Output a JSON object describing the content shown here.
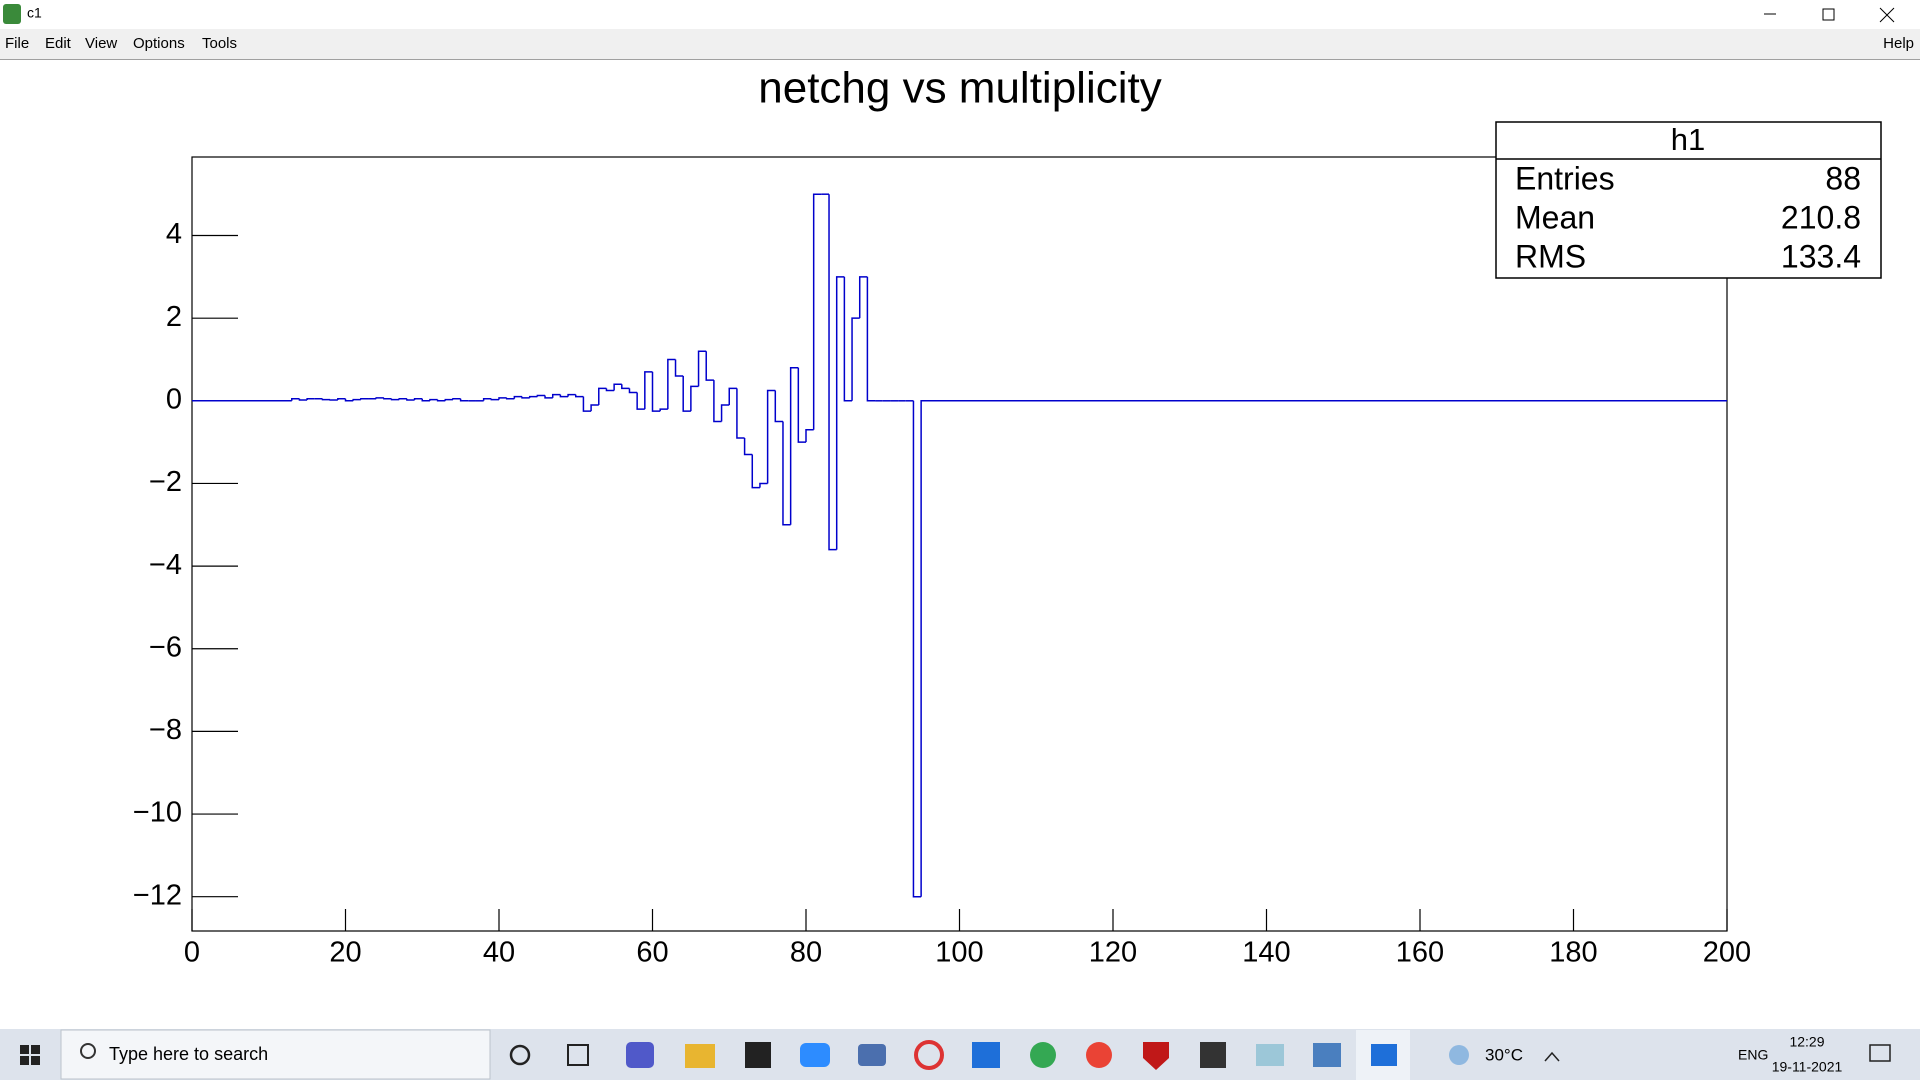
{
  "window": {
    "title": "c1",
    "menu": [
      "File",
      "Edit",
      "View",
      "Options",
      "Tools"
    ],
    "help": "Help"
  },
  "chart_data": {
    "type": "histogram",
    "title": "netchg vs multiplicity",
    "bins": [
      0,
      13,
      14,
      15,
      16,
      17,
      18,
      19,
      20,
      21,
      22,
      23,
      24,
      25,
      26,
      27,
      28,
      29,
      30,
      31,
      32,
      33,
      34,
      35,
      36,
      37,
      38,
      39,
      40,
      41,
      42,
      43,
      44,
      45,
      46,
      47,
      48,
      49,
      50,
      51,
      52,
      53,
      54,
      55,
      56,
      57,
      58,
      59,
      60,
      61,
      62,
      63,
      64,
      65,
      66,
      67,
      68,
      69,
      70,
      71,
      72,
      73,
      74,
      75,
      76,
      77,
      78,
      79,
      80,
      81,
      82,
      83,
      84,
      85,
      86,
      87,
      88,
      89,
      90,
      91,
      92,
      93,
      94,
      95,
      200
    ],
    "values": [
      0,
      0.05,
      0.02,
      0.05,
      0.05,
      0.03,
      0.02,
      0.05,
      0,
      0.03,
      0.05,
      0.05,
      0.07,
      0.05,
      0.03,
      0.05,
      0.02,
      0.05,
      0,
      0.03,
      0,
      0.03,
      0.05,
      0,
      0,
      0,
      0.05,
      0.03,
      0.07,
      0.05,
      0.1,
      0.07,
      0.1,
      0.13,
      0.07,
      0.15,
      0.1,
      0.15,
      0.1,
      -0.25,
      -0.1,
      0.3,
      0.25,
      0.4,
      0.3,
      0.2,
      -0.2,
      0.7,
      -0.25,
      -0.2,
      1.0,
      0.6,
      -0.25,
      0.35,
      1.2,
      0.5,
      -0.5,
      -0.1,
      0.3,
      -0.9,
      -1.3,
      -2.1,
      -2.0,
      0.25,
      -0.5,
      -3.0,
      0.8,
      -1.0,
      -0.7,
      5.0,
      5.0,
      -3.6,
      3.0,
      0,
      2.0,
      3.0,
      0,
      0,
      0,
      0,
      0,
      0,
      -12,
      0
    ],
    "color": "#0000cc",
    "xlim": [
      0,
      200
    ],
    "ylim": [
      -12.83,
      5.9
    ],
    "xticks": [
      0,
      20,
      40,
      60,
      80,
      100,
      120,
      140,
      160,
      180,
      200
    ],
    "yticks": [
      {
        "value": -12,
        "label": "−12"
      },
      {
        "value": -10,
        "label": "−10"
      },
      {
        "value": -8,
        "label": "−8"
      },
      {
        "value": -6,
        "label": "−6"
      },
      {
        "value": -4,
        "label": "−4"
      },
      {
        "value": -2,
        "label": "−2"
      },
      0,
      2,
      4
    ]
  },
  "stats": {
    "name": "h1",
    "rows": [
      [
        "Entries",
        "88"
      ],
      [
        "Mean",
        "210.8"
      ],
      [
        "RMS",
        "133.4"
      ]
    ]
  },
  "taskbar": {
    "search": "Type here to search",
    "weather": "30°C",
    "language": "ENG",
    "time": "12:29",
    "date": "19-11-2021"
  }
}
